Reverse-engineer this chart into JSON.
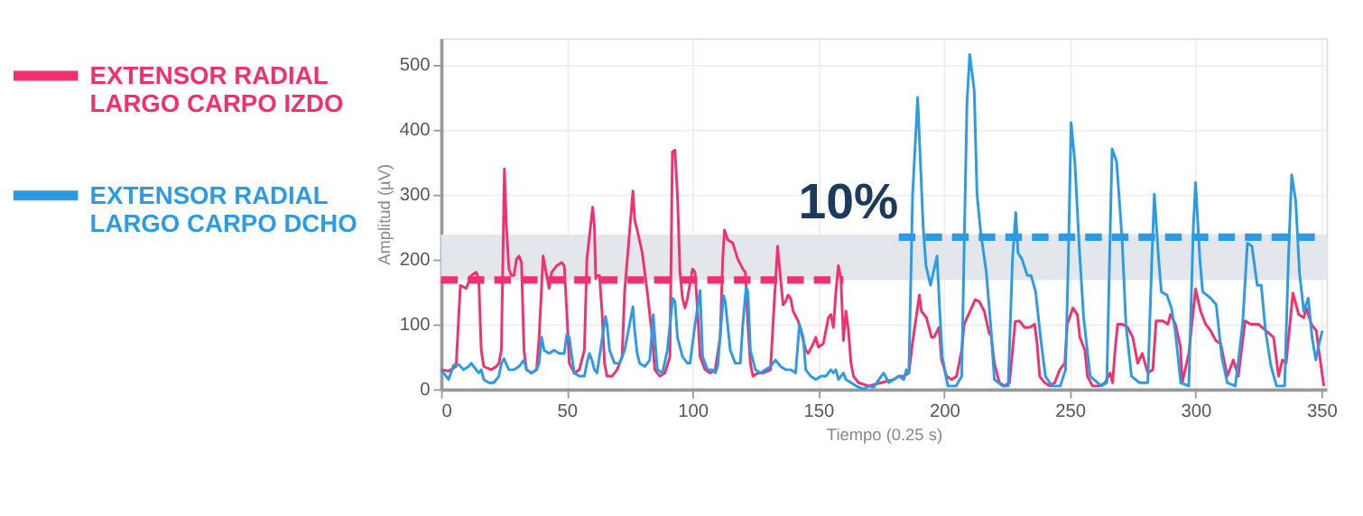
{
  "chart_data": {
    "type": "line",
    "xlabel": "Tiempo (0.25 s)",
    "ylabel": "Amplitud (µV)",
    "xlim": [
      0,
      352
    ],
    "ylim": [
      0,
      540
    ],
    "xticks": [
      0,
      50,
      100,
      150,
      200,
      250,
      300,
      350
    ],
    "yticks": [
      0,
      100,
      200,
      300,
      400,
      500
    ],
    "grid": true,
    "legend": "left",
    "line_style": "solid",
    "annotations": [
      "10%"
    ],
    "bands": [
      {
        "axis": "y",
        "from": 168,
        "to": 238,
        "color": "#e3e7eb"
      }
    ],
    "series": [
      {
        "name": "EXTENSOR RADIAL LARGO CARPO IZDO",
        "color": "#f2306f",
        "x": [
          0,
          3,
          6,
          7.7,
          10,
          12,
          14,
          15,
          16,
          17,
          20,
          22,
          23,
          24,
          25.2,
          26,
          27,
          28,
          29,
          30,
          31,
          32,
          33,
          34,
          36,
          38,
          39,
          40.6,
          42,
          43,
          44,
          46,
          48,
          49,
          50,
          51,
          53,
          55,
          57,
          58,
          60.3,
          61,
          61.5,
          62,
          63,
          64,
          65,
          66,
          68,
          70,
          72,
          73,
          76.3,
          77,
          78,
          80,
          82,
          84,
          85,
          87,
          89,
          91,
          92,
          93,
          94,
          95,
          96,
          97,
          98,
          100,
          101,
          102,
          103,
          105,
          107,
          109,
          111,
          112,
          112.7,
          114,
          116,
          118,
          120,
          121,
          122,
          123,
          124,
          126,
          128,
          131,
          132,
          133.8,
          135,
          136,
          137,
          138,
          139,
          140,
          142,
          143,
          144,
          145,
          146,
          148,
          149,
          150,
          152,
          154,
          155,
          156,
          157,
          158,
          159,
          160,
          161,
          162,
          163,
          164,
          166,
          170,
          175,
          180,
          182,
          184,
          186,
          187.4,
          190.2,
          191,
          193,
          195,
          196,
          198,
          199,
          201,
          203,
          205,
          207,
          208,
          212.4,
          214,
          216,
          218,
          218.5,
          220,
          222,
          224,
          226,
          228.3,
          230,
          232,
          234,
          236,
          237,
          238,
          240,
          242,
          244,
          246,
          248,
          249,
          251.2,
          253,
          254,
          256,
          257,
          259,
          262,
          264,
          266,
          267,
          268,
          269,
          271,
          273,
          275,
          277,
          278.8,
          281,
          283,
          284.3,
          287,
          289,
          290,
          292,
          294,
          294.7,
          297.3,
          300,
          302,
          304,
          306,
          308,
          310,
          312.6,
          315,
          317,
          319.7,
          322,
          325,
          328,
          331,
          333,
          334.5,
          336,
          338.7,
          341,
          343,
          344,
          346,
          348,
          349,
          351
        ],
        "values": [
          30,
          28,
          35,
          160,
          155,
          175,
          180,
          170,
          60,
          35,
          30,
          35,
          40,
          60,
          339,
          250,
          185,
          175,
          175,
          200,
          205,
          195,
          60,
          30,
          25,
          30,
          80,
          205,
          175,
          155,
          180,
          190,
          195,
          190,
          120,
          40,
          25,
          30,
          60,
          200,
          280,
          250,
          170,
          175,
          175,
          120,
          40,
          20,
          20,
          30,
          50,
          150,
          305,
          260,
          245,
          210,
          150,
          80,
          30,
          20,
          25,
          50,
          365,
          368,
          300,
          180,
          140,
          125,
          140,
          185,
          180,
          120,
          50,
          30,
          25,
          30,
          80,
          200,
          245,
          230,
          225,
          200,
          185,
          180,
          100,
          40,
          20,
          25,
          25,
          30,
          100,
          220,
          170,
          130,
          135,
          145,
          140,
          120,
          105,
          90,
          75,
          60,
          55,
          70,
          80,
          65,
          70,
          110,
          115,
          95,
          150,
          190,
          170,
          75,
          120,
          90,
          40,
          20,
          10,
          5,
          10,
          15,
          20,
          20,
          25,
          70,
          145,
          120,
          110,
          80,
          80,
          95,
          45,
          20,
          15,
          20,
          60,
          100,
          138,
          135,
          120,
          85,
          90,
          40,
          10,
          5,
          10,
          104,
          105,
          95,
          95,
          100,
          70,
          20,
          10,
          5,
          10,
          30,
          40,
          100,
          125,
          115,
          80,
          60,
          20,
          5,
          5,
          10,
          25,
          10,
          60,
          100,
          100,
          95,
          80,
          40,
          55,
          25,
          30,
          105,
          105,
          100,
          115,
          100,
          65,
          10,
          55,
          154,
          120,
          100,
          90,
          75,
          70,
          20,
          45,
          20,
          105,
          100,
          100,
          90,
          80,
          20,
          45,
          40,
          148,
          115,
          110,
          125,
          100,
          90,
          60,
          5
        ]
      },
      {
        "name": "EXTENSOR RADIAL LARGO CARPO DCHO",
        "color": "#2b9be6",
        "x": [
          0,
          1,
          3,
          5,
          7,
          9,
          11,
          12,
          13,
          15,
          16,
          17,
          19,
          21,
          23,
          24,
          25,
          27,
          29,
          31,
          32,
          33,
          34,
          36,
          38,
          39,
          40,
          41,
          43,
          45,
          47,
          49,
          50,
          51,
          52,
          53,
          55,
          57,
          58,
          59,
          60,
          61,
          62,
          63,
          65.4,
          66,
          67,
          69,
          71,
          73,
          76.3,
          77,
          78,
          79,
          81,
          83,
          84.4,
          85,
          86,
          88,
          90,
          92.1,
          93,
          94,
          96,
          98,
          99,
          101,
          103,
          104,
          106,
          108,
          109,
          110,
          112.3,
          113,
          115,
          117,
          119,
          120,
          121.3,
          122,
          123,
          125,
          127,
          129,
          131,
          133,
          134,
          135,
          137,
          139,
          141,
          142.5,
          144,
          145,
          147,
          149,
          151,
          153,
          155,
          156,
          157,
          158,
          160,
          161,
          163,
          165,
          168,
          170,
          172,
          175,
          176,
          178,
          180,
          182,
          184,
          185,
          186,
          187.5,
          189.5,
          191.7,
          192.8,
          194.6,
          197.2,
          198.3,
          199.3,
          201.5,
          204.8,
          207,
          209.1,
          210.2,
          212,
          213.1,
          214.6,
          216.8,
          218.5,
          220,
          223.3,
          225.5,
          227.2,
          228.5,
          229.4,
          231,
          233.1,
          234.6,
          236.4,
          238.5,
          240.3,
          242.9,
          246.2,
          248.3,
          249.4,
          250.5,
          252,
          253.8,
          255.5,
          258.1,
          262.5,
          264.7,
          265.8,
          266.8,
          268.6,
          270.8,
          272.3,
          274.5,
          277.7,
          281,
          282.6,
          283.6,
          285.3,
          286.4,
          288.6,
          290.4,
          291.9,
          294.1,
          297.3,
          299.1,
          300,
          301.7,
          302.8,
          306,
          308.2,
          310.4,
          312.6,
          315.8,
          318.7,
          320.6,
          322.4,
          324.5,
          326.1,
          327.8,
          330,
          332.2,
          335.4,
          336.9,
          338.2,
          339.8,
          341.3,
          343,
          344.8,
          346.3,
          347.8,
          349.1,
          350.4
        ],
        "values": [
          30,
          25,
          15,
          37,
          38,
          30,
          35,
          40,
          35,
          25,
          30,
          15,
          10,
          10,
          20,
          40,
          47,
          30,
          30,
          35,
          40,
          45,
          30,
          25,
          30,
          40,
          80,
          60,
          55,
          60,
          55,
          55,
          84,
          80,
          50,
          25,
          20,
          20,
          40,
          55,
          45,
          30,
          25,
          50,
          112,
          100,
          60,
          40,
          40,
          60,
          127,
          90,
          55,
          40,
          35,
          45,
          115,
          80,
          30,
          25,
          60,
          140,
          135,
          80,
          50,
          40,
          40,
          100,
          152,
          50,
          30,
          30,
          25,
          35,
          144,
          135,
          60,
          40,
          40,
          100,
          157,
          150,
          60,
          30,
          25,
          30,
          35,
          45,
          40,
          35,
          30,
          30,
          25,
          100,
          80,
          30,
          20,
          15,
          20,
          20,
          30,
          25,
          30,
          15,
          25,
          15,
          10,
          5,
          0,
          5,
          3,
          20,
          25,
          10,
          15,
          20,
          15,
          30,
          25,
          300,
          449,
          250,
          190,
          160,
          205,
          120,
          50,
          5,
          5,
          20,
          440,
          515,
          460,
          300,
          240,
          180,
          100,
          15,
          5,
          5,
          200,
          272,
          210,
          200,
          175,
          175,
          150,
          75,
          20,
          5,
          5,
          30,
          200,
          410,
          350,
          215,
          110,
          20,
          5,
          10,
          200,
          370,
          350,
          230,
          100,
          20,
          10,
          10,
          200,
          300,
          200,
          150,
          145,
          125,
          90,
          10,
          5,
          250,
          318,
          200,
          150,
          140,
          130,
          50,
          10,
          5,
          100,
          225,
          220,
          160,
          160,
          90,
          35,
          5,
          5,
          200,
          330,
          290,
          180,
          120,
          140,
          80,
          45,
          70,
          90
        ]
      },
      {
        "color": "#f2306f",
        "type": "line",
        "line_style": "dashed",
        "x": [
          0,
          160
        ],
        "values": [
          168,
          168
        ]
      },
      {
        "color": "#2b9be6",
        "type": "line",
        "line_style": "dashed",
        "x": [
          182,
          350
        ],
        "values": [
          234,
          234
        ]
      }
    ]
  }
}
